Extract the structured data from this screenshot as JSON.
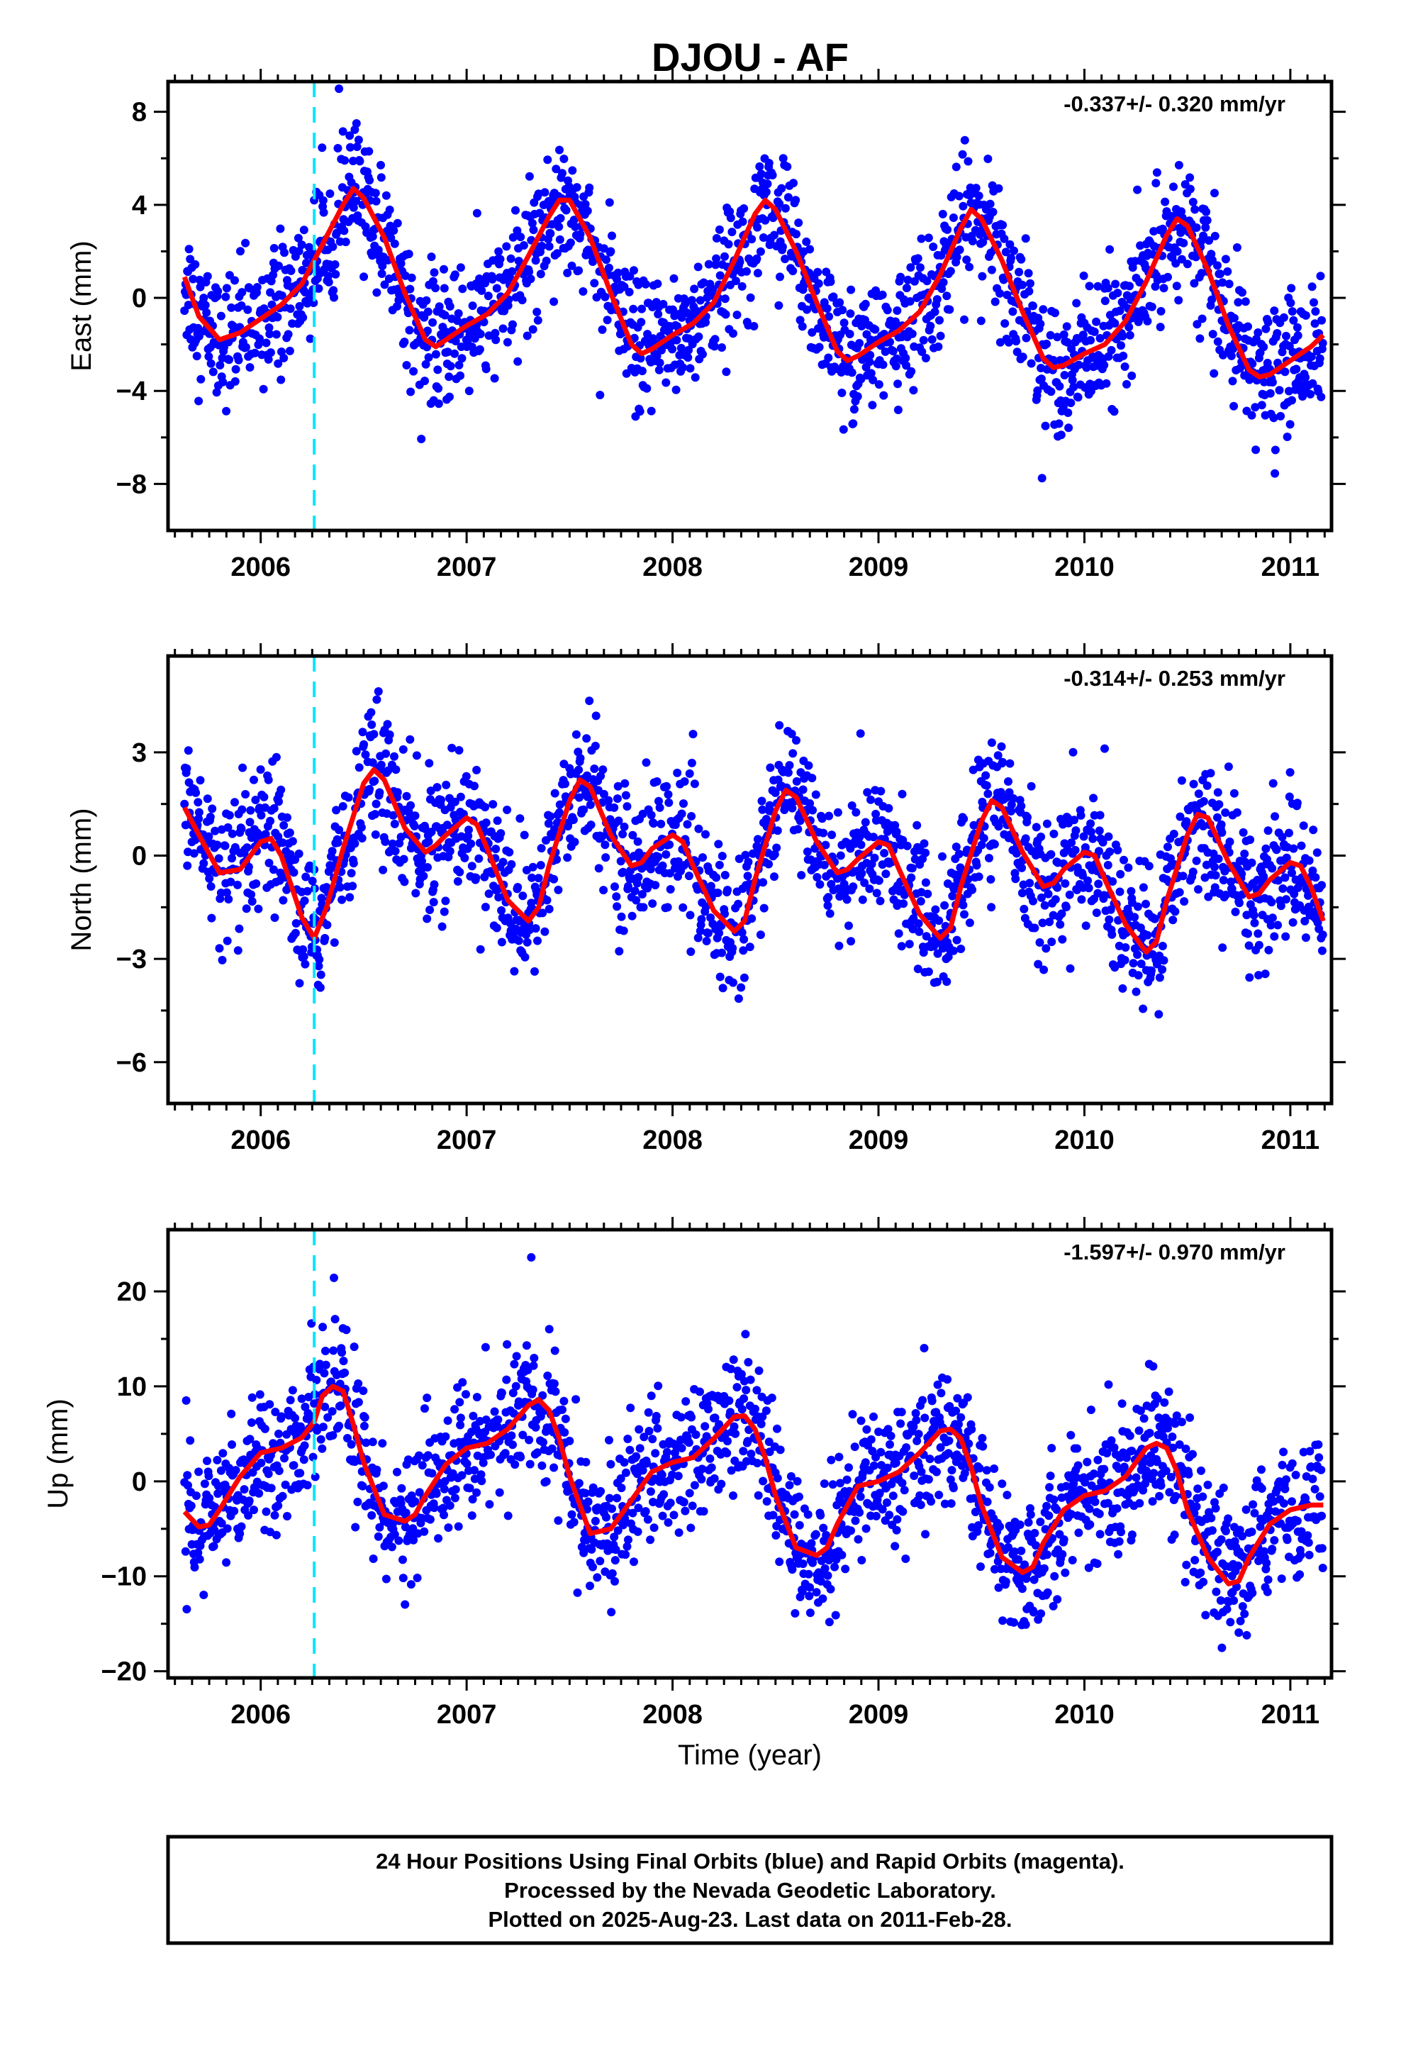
{
  "title": "DJOU - AF",
  "colors": {
    "final_orbits": "#0000ff",
    "model": "#ff0000",
    "event": "#00e5ff",
    "frame": "#000000"
  },
  "chart_data": [
    {
      "type": "scatter",
      "component": "east",
      "ylabel": "East (mm)",
      "xlabel": "",
      "rate": "-0.337+/- 0.320 mm/yr",
      "xlim": [
        2005.55,
        2011.2
      ],
      "ylim": [
        -10,
        9.3
      ],
      "yticks": [
        8,
        4,
        0,
        -4,
        -8
      ],
      "yticklabels": [
        "8",
        "4",
        "0",
        "−4",
        "−8"
      ],
      "xticks": [
        2006,
        2007,
        2008,
        2009,
        2010,
        2011
      ],
      "xticklabels": [
        "2006",
        "2007",
        "2008",
        "2009",
        "2010",
        "2011"
      ],
      "event_line_x": 2006.26,
      "model_x": [
        2005.63,
        2005.7,
        2005.8,
        2005.9,
        2006.0,
        2006.1,
        2006.2,
        2006.3,
        2006.4,
        2006.45,
        2006.5,
        2006.6,
        2006.7,
        2006.8,
        2006.85,
        2006.9,
        2007.0,
        2007.1,
        2007.2,
        2007.3,
        2007.4,
        2007.45,
        2007.5,
        2007.6,
        2007.7,
        2007.8,
        2007.85,
        2007.9,
        2008.0,
        2008.1,
        2008.2,
        2008.3,
        2008.4,
        2008.45,
        2008.5,
        2008.6,
        2008.7,
        2008.8,
        2008.85,
        2008.9,
        2009.0,
        2009.1,
        2009.2,
        2009.3,
        2009.4,
        2009.45,
        2009.5,
        2009.6,
        2009.7,
        2009.8,
        2009.85,
        2009.9,
        2010.0,
        2010.1,
        2010.2,
        2010.3,
        2010.4,
        2010.45,
        2010.5,
        2010.6,
        2010.7,
        2010.8,
        2010.85,
        2010.9,
        2011.0,
        2011.1,
        2011.16
      ],
      "model_y": [
        0.9,
        -0.8,
        -1.8,
        -1.5,
        -0.9,
        -0.3,
        0.6,
        2.3,
        4.0,
        4.7,
        4.3,
        2.6,
        0.2,
        -1.8,
        -2.1,
        -1.8,
        -1.2,
        -0.7,
        0.2,
        1.8,
        3.5,
        4.2,
        4.2,
        2.6,
        0.2,
        -2.0,
        -2.4,
        -2.2,
        -1.6,
        -1.1,
        -0.2,
        1.6,
        3.6,
        4.2,
        3.8,
        2.0,
        -0.2,
        -2.3,
        -2.7,
        -2.5,
        -1.9,
        -1.4,
        -0.6,
        1.0,
        3.0,
        3.8,
        3.4,
        1.6,
        -0.6,
        -2.6,
        -3.0,
        -2.9,
        -2.4,
        -2.0,
        -1.0,
        0.7,
        2.7,
        3.4,
        3.1,
        1.2,
        -1.2,
        -3.1,
        -3.4,
        -3.3,
        -2.7,
        -2.1,
        -1.6
      ],
      "noise_sd": 1.4
    },
    {
      "type": "scatter",
      "component": "north",
      "ylabel": "North (mm)",
      "xlabel": "",
      "rate": "-0.314+/- 0.253 mm/yr",
      "xlim": [
        2005.55,
        2011.2
      ],
      "ylim": [
        -7.2,
        5.8
      ],
      "yticks": [
        3,
        0,
        -3,
        -6
      ],
      "yticklabels": [
        "3",
        "0",
        "−3",
        "−6"
      ],
      "xticks": [
        2006,
        2007,
        2008,
        2009,
        2010,
        2011
      ],
      "xticklabels": [
        "2006",
        "2007",
        "2008",
        "2009",
        "2010",
        "2011"
      ],
      "event_line_x": 2006.26,
      "model_x": [
        2005.63,
        2005.7,
        2005.8,
        2005.9,
        2006.0,
        2006.05,
        2006.1,
        2006.15,
        2006.2,
        2006.26,
        2006.32,
        2006.4,
        2006.5,
        2006.55,
        2006.6,
        2006.7,
        2006.8,
        2006.85,
        2006.9,
        2007.0,
        2007.05,
        2007.1,
        2007.2,
        2007.3,
        2007.35,
        2007.4,
        2007.5,
        2007.55,
        2007.6,
        2007.7,
        2007.8,
        2007.85,
        2007.9,
        2008.0,
        2008.05,
        2008.1,
        2008.2,
        2008.3,
        2008.35,
        2008.4,
        2008.5,
        2008.55,
        2008.6,
        2008.7,
        2008.8,
        2008.85,
        2008.9,
        2009.0,
        2009.05,
        2009.1,
        2009.2,
        2009.3,
        2009.35,
        2009.4,
        2009.5,
        2009.55,
        2009.6,
        2009.7,
        2009.8,
        2009.85,
        2009.9,
        2010.0,
        2010.05,
        2010.1,
        2010.2,
        2010.3,
        2010.35,
        2010.4,
        2010.5,
        2010.55,
        2010.6,
        2010.7,
        2010.8,
        2010.85,
        2010.9,
        2011.0,
        2011.05,
        2011.1,
        2011.16
      ],
      "model_y": [
        1.4,
        0.6,
        -0.5,
        -0.4,
        0.4,
        0.5,
        0.0,
        -0.9,
        -1.8,
        -2.4,
        -1.5,
        0.2,
        2.1,
        2.5,
        2.2,
        0.8,
        0.1,
        0.3,
        0.6,
        1.1,
        0.9,
        0.2,
        -1.3,
        -1.9,
        -1.5,
        -0.3,
        1.6,
        2.2,
        2.0,
        0.6,
        -0.3,
        -0.2,
        0.2,
        0.6,
        0.4,
        -0.3,
        -1.6,
        -2.2,
        -1.9,
        -0.7,
        1.3,
        1.9,
        1.7,
        0.4,
        -0.5,
        -0.4,
        -0.1,
        0.4,
        0.3,
        -0.4,
        -1.7,
        -2.4,
        -2.1,
        -0.9,
        1.0,
        1.6,
        1.4,
        0.1,
        -0.9,
        -0.8,
        -0.4,
        0.1,
        0.0,
        -0.7,
        -2.0,
        -2.8,
        -2.5,
        -1.3,
        0.6,
        1.2,
        1.1,
        -0.2,
        -1.2,
        -1.1,
        -0.7,
        -0.2,
        -0.3,
        -0.9,
        -1.9
      ],
      "noise_sd": 1.0
    },
    {
      "type": "scatter",
      "component": "up",
      "ylabel": "Up (mm)",
      "xlabel": "Time (year)",
      "rate": "-1.597+/- 0.970 mm/yr",
      "xlim": [
        2005.55,
        2011.2
      ],
      "ylim": [
        -20.7,
        26.5
      ],
      "yticks": [
        20,
        10,
        0,
        -10,
        -20
      ],
      "yticklabels": [
        "20",
        "10",
        "0",
        "−10",
        "−20"
      ],
      "xticks": [
        2006,
        2007,
        2008,
        2009,
        2010,
        2011
      ],
      "xticklabels": [
        "2006",
        "2007",
        "2008",
        "2009",
        "2010",
        "2011"
      ],
      "event_line_x": 2006.26,
      "model_x": [
        2005.63,
        2005.7,
        2005.75,
        2005.8,
        2005.9,
        2006.0,
        2006.1,
        2006.2,
        2006.26,
        2006.3,
        2006.35,
        2006.4,
        2006.45,
        2006.5,
        2006.6,
        2006.7,
        2006.75,
        2006.8,
        2006.9,
        2007.0,
        2007.1,
        2007.2,
        2007.3,
        2007.35,
        2007.4,
        2007.45,
        2007.5,
        2007.6,
        2007.7,
        2007.8,
        2007.9,
        2008.0,
        2008.1,
        2008.2,
        2008.3,
        2008.35,
        2008.4,
        2008.45,
        2008.5,
        2008.6,
        2008.7,
        2008.75,
        2008.8,
        2008.9,
        2009.0,
        2009.1,
        2009.2,
        2009.3,
        2009.35,
        2009.4,
        2009.45,
        2009.5,
        2009.6,
        2009.7,
        2009.75,
        2009.8,
        2009.9,
        2010.0,
        2010.1,
        2010.2,
        2010.3,
        2010.35,
        2010.4,
        2010.45,
        2010.5,
        2010.6,
        2010.7,
        2010.75,
        2010.8,
        2010.9,
        2011.0,
        2011.1,
        2011.16
      ],
      "model_y": [
        -3.2,
        -4.8,
        -4.6,
        -3.0,
        0.5,
        3.0,
        3.5,
        4.6,
        6.3,
        9.0,
        10.0,
        9.5,
        6.0,
        2.0,
        -3.5,
        -4.2,
        -3.5,
        -1.5,
        1.8,
        3.5,
        4.0,
        5.5,
        8.0,
        8.6,
        7.5,
        4.5,
        0.5,
        -5.5,
        -5.0,
        -2.0,
        1.0,
        2.0,
        2.5,
        4.5,
        6.8,
        6.9,
        5.5,
        2.5,
        -1.5,
        -7.0,
        -7.8,
        -7.0,
        -4.5,
        -0.5,
        0.0,
        1.0,
        3.0,
        5.3,
        5.5,
        4.5,
        1.5,
        -2.5,
        -8.0,
        -9.6,
        -9.0,
        -6.5,
        -3.0,
        -1.5,
        -1.0,
        0.5,
        3.5,
        4.0,
        3.5,
        1.0,
        -3.0,
        -8.0,
        -10.8,
        -10.5,
        -8.0,
        -4.5,
        -3.0,
        -2.5,
        -2.5
      ],
      "noise_sd": 3.6
    }
  ],
  "footer": {
    "line1": "24 Hour Positions Using Final Orbits (blue) and Rapid Orbits (magenta).",
    "line2": "Processed by the Nevada Geodetic Laboratory.",
    "line3": "Plotted on 2025-Aug-23. Last data on 2011-Feb-28."
  }
}
